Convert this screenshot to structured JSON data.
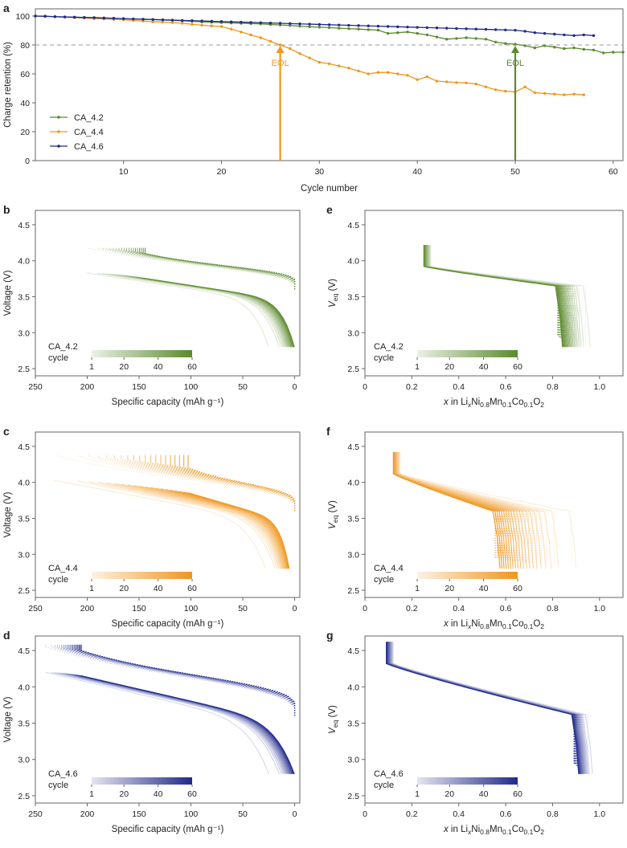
{
  "colors": {
    "CA_4.2": "#5b8a2d",
    "CA_4.4": "#f0961e",
    "CA_4.6": "#1f2a8c",
    "eol_line": "#999999"
  },
  "chart_data": [
    {
      "id": "a",
      "letter": "a",
      "type": "line",
      "xlabel": "Cycle number",
      "ylabel": "Charge retention (%)",
      "xlim": [
        1,
        61
      ],
      "ylim": [
        0,
        105
      ],
      "xticks": [
        10,
        20,
        30,
        40,
        50,
        60
      ],
      "yticks": [
        0,
        20,
        40,
        60,
        80,
        100
      ],
      "reference_line": {
        "y": 80,
        "style": "dashed"
      },
      "annotations": [
        {
          "text": "EOL",
          "x": 26,
          "series": "CA_4.4"
        },
        {
          "text": "EOL",
          "x": 50,
          "series": "CA_4.2"
        }
      ],
      "series": [
        {
          "name": "CA_4.2",
          "x_start": 1,
          "values": [
            100,
            100,
            99.5,
            99.3,
            99.2,
            99.1,
            99,
            98.8,
            98.5,
            98.2,
            98,
            97.8,
            97.6,
            97.3,
            97,
            96.7,
            96.4,
            96,
            95.7,
            95.5,
            95.2,
            95,
            94.8,
            94.6,
            94.2,
            93.8,
            93.5,
            93,
            92.6,
            92.3,
            92,
            91.6,
            91.3,
            91,
            90.6,
            90.3,
            88,
            88.5,
            89,
            88,
            87,
            85.5,
            84,
            84.5,
            85,
            84.5,
            84,
            82,
            81,
            80.5,
            79.5,
            78,
            79.5,
            78.5,
            77.5,
            78,
            77,
            76.5,
            74.5,
            75,
            75
          ]
        },
        {
          "name": "CA_4.4",
          "x_start": 1,
          "values": [
            100,
            99.8,
            99.5,
            99.2,
            98.9,
            98.6,
            98.3,
            98,
            97.7,
            97.4,
            97,
            96.5,
            96,
            95.8,
            95.5,
            95,
            94.3,
            93.7,
            93.2,
            92.8,
            91,
            89,
            87,
            85,
            82.5,
            80,
            77.5,
            74,
            71,
            68,
            67,
            65.5,
            64,
            62,
            60,
            61,
            61,
            60,
            59,
            56,
            58,
            55,
            54.5,
            54,
            53.8,
            53,
            51,
            49,
            48,
            47.5,
            51,
            47,
            46.5,
            46,
            45.5,
            46,
            45.5
          ]
        },
        {
          "name": "CA_4.6",
          "x_start": 1,
          "values": [
            100,
            99.8,
            99.6,
            99.4,
            99.2,
            99,
            98.8,
            98.6,
            98.4,
            98.2,
            98,
            97.8,
            97.6,
            97.4,
            97.2,
            97,
            96.8,
            96.6,
            96.4,
            96.2,
            96,
            95.8,
            95.6,
            95.4,
            95.2,
            95,
            94.8,
            94.6,
            94.4,
            94.2,
            94,
            93.8,
            93.6,
            93.4,
            93.2,
            93,
            92.8,
            92.6,
            92.4,
            92.2,
            92,
            91.8,
            91.6,
            91.4,
            91.2,
            91,
            90.8,
            90.6,
            90.4,
            90.2,
            89.5,
            88.5,
            88,
            87.5,
            87,
            86.5,
            87,
            86.5
          ]
        }
      ]
    },
    {
      "id": "b",
      "letter": "b",
      "type": "line",
      "series_name": "CA_4.2",
      "xlabel": "Specific capacity (mAh g⁻¹)",
      "ylabel": "Voltage (V)",
      "xlim": [
        250,
        -5
      ],
      "ylim": [
        2.4,
        4.7
      ],
      "xticks": [
        250,
        200,
        150,
        100,
        50,
        0
      ],
      "yticks": [
        2.5,
        3.0,
        3.5,
        4.0,
        4.5
      ],
      "legend": {
        "series": "CA_4.2",
        "label": "cycle",
        "ticks": [
          "1",
          "20",
          "40",
          "60"
        ]
      },
      "curves": {
        "cycles": 60,
        "first_charge_capacity": 200,
        "last_charge_capacity": 143,
        "v_start": 2.8,
        "v_end_first": 4.18,
        "v_cut": 4.2,
        "v_end_last": 4.1,
        "discharge_start_first": 25,
        "discharge_start_last": 0
      }
    },
    {
      "id": "c",
      "letter": "c",
      "type": "line",
      "series_name": "CA_4.4",
      "xlabel": "Specific capacity (mAh g⁻¹)",
      "ylabel": "Voltage (V)",
      "xlim": [
        250,
        -5
      ],
      "ylim": [
        2.4,
        4.7
      ],
      "xticks": [
        250,
        200,
        150,
        100,
        50,
        0
      ],
      "yticks": [
        2.5,
        3.0,
        3.5,
        4.0,
        4.5
      ],
      "legend": {
        "series": "CA_4.4",
        "label": "cycle",
        "ticks": [
          "1",
          "20",
          "40",
          "60"
        ]
      },
      "curves": {
        "cycles": 60,
        "first_charge_capacity": 232,
        "last_charge_capacity": 100,
        "v_start": 2.8,
        "v_end_first": 4.38,
        "v_cut": 4.4,
        "v_end_last": 4.2,
        "discharge_start_first": 28,
        "discharge_start_last": 5
      }
    },
    {
      "id": "d",
      "letter": "d",
      "type": "line",
      "series_name": "CA_4.6",
      "xlabel": "Specific capacity (mAh g⁻¹)",
      "ylabel": "Voltage (V)",
      "xlim": [
        250,
        -5
      ],
      "ylim": [
        2.4,
        4.7
      ],
      "xticks": [
        250,
        200,
        150,
        100,
        50,
        0
      ],
      "yticks": [
        2.5,
        3.0,
        3.5,
        4.0,
        4.5
      ],
      "legend": {
        "series": "CA_4.6",
        "label": "cycle",
        "ticks": [
          "1",
          "20",
          "40",
          "60"
        ]
      },
      "curves": {
        "cycles": 60,
        "first_charge_capacity": 240,
        "last_charge_capacity": 205,
        "v_start": 2.8,
        "v_end_first": 4.55,
        "v_cut": 4.6,
        "v_end_last": 4.5,
        "discharge_start_first": 25,
        "discharge_start_last": 0
      }
    },
    {
      "id": "e",
      "letter": "e",
      "type": "line",
      "series_name": "CA_4.2",
      "xlabel_parts": [
        "x",
        " in Li",
        "x",
        "Ni",
        "0.8",
        "Mn",
        "0.1",
        "Co",
        "0.1",
        "O",
        "2"
      ],
      "ylabel_parts": [
        "V",
        "eq",
        " (V)"
      ],
      "xlim": [
        0,
        1.1
      ],
      "ylim": [
        2.4,
        4.7
      ],
      "xticks": [
        0,
        0.2,
        0.4,
        0.6,
        0.8,
        1.0
      ],
      "yticks": [
        2.5,
        3.0,
        3.5,
        4.0,
        4.5
      ],
      "xtick_labels": [
        "0",
        "0.2",
        "0.4",
        "0.6",
        "0.8",
        "1.0"
      ],
      "legend": {
        "series": "CA_4.2",
        "label": "cycle",
        "ticks": [
          "1",
          "20",
          "40",
          "60"
        ]
      },
      "curves": {
        "cycles": 60,
        "x_top": 0.25,
        "x_bottom_first": 0.96,
        "x_bottom_last": 0.84,
        "v_top": 4.22,
        "v_bottom": 2.8,
        "v_knee": 3.65
      }
    },
    {
      "id": "f",
      "letter": "f",
      "type": "line",
      "series_name": "CA_4.4",
      "xlabel_parts": [
        "x",
        " in Li",
        "x",
        "Ni",
        "0.8",
        "Mn",
        "0.1",
        "Co",
        "0.1",
        "O",
        "2"
      ],
      "ylabel_parts": [
        "V",
        "eq",
        " (V)"
      ],
      "xlim": [
        0,
        1.1
      ],
      "ylim": [
        2.4,
        4.7
      ],
      "xticks": [
        0,
        0.2,
        0.4,
        0.6,
        0.8,
        1.0
      ],
      "yticks": [
        2.5,
        3.0,
        3.5,
        4.0,
        4.5
      ],
      "xtick_labels": [
        "0",
        "0.2",
        "0.4",
        "0.6",
        "0.8",
        "1.0"
      ],
      "legend": {
        "series": "CA_4.4",
        "label": "cycle",
        "ticks": [
          "1",
          "20",
          "40",
          "60"
        ]
      },
      "curves": {
        "cycles": 60,
        "x_top": 0.12,
        "x_bottom_first": 0.9,
        "x_bottom_last": 0.57,
        "v_top": 4.42,
        "v_bottom": 2.8,
        "v_knee": 3.6
      }
    },
    {
      "id": "g",
      "letter": "g",
      "type": "line",
      "series_name": "CA_4.6",
      "xlabel_parts": [
        "x",
        " in Li",
        "x",
        "Ni",
        "0.8",
        "Mn",
        "0.1",
        "Co",
        "0.1",
        "O",
        "2"
      ],
      "ylabel_parts": [
        "V",
        "eq",
        " (V)"
      ],
      "xlim": [
        0,
        1.1
      ],
      "ylim": [
        2.4,
        4.7
      ],
      "xticks": [
        0,
        0.2,
        0.4,
        0.6,
        0.8,
        1.0
      ],
      "yticks": [
        2.5,
        3.0,
        3.5,
        4.0,
        4.5
      ],
      "xtick_labels": [
        "0",
        "0.2",
        "0.4",
        "0.6",
        "0.8",
        "1.0"
      ],
      "legend": {
        "series": "CA_4.6",
        "label": "cycle",
        "ticks": [
          "1",
          "20",
          "40",
          "60"
        ]
      },
      "curves": {
        "cycles": 60,
        "x_top": 0.09,
        "x_bottom_first": 0.97,
        "x_bottom_last": 0.91,
        "v_top": 4.62,
        "v_bottom": 2.8,
        "v_knee": 3.62
      }
    }
  ]
}
